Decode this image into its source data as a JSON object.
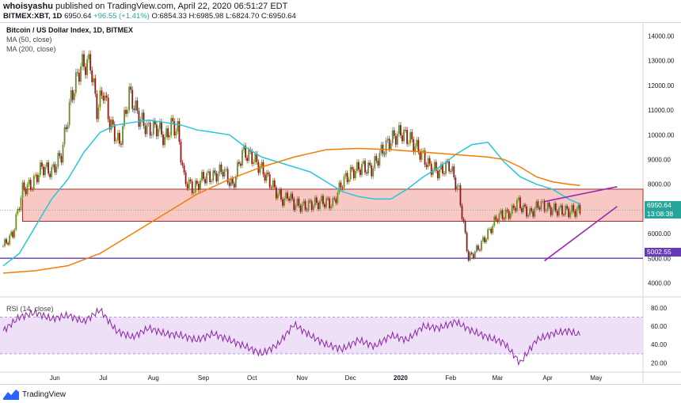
{
  "header": {
    "publisher_user": "whoisyashu",
    "publisher_rest": " published on TradingView.com, April 22, 2020 06:51:27 EDT",
    "symbol": "BITMEX:XBT, 1D",
    "last": "6950.64",
    "change": "+96.55 (+1.41%)",
    "open": "O:6854.33",
    "high": "H:6985.98",
    "low": "L:6824.70",
    "close": "C:6950.64"
  },
  "legend": {
    "title": "Bitcoin / US Dollar Index, 1D, BITMEX",
    "ma50": "MA (50, close)",
    "ma200": "MA (200, close)",
    "rsi": "RSI (14, close)"
  },
  "tags": {
    "last_price": "6950.64",
    "countdown": "13:08:38",
    "support": "5002.55"
  },
  "footer": {
    "brand": "TradingView"
  },
  "colors": {
    "up": "#26a69a",
    "down": "#ef5350",
    "candle_up": "#6b8e23",
    "candle_down": "#8b1a1a",
    "ma50": "#26c6da",
    "ma200": "#f57c00",
    "zone_fill": "#f8c8c4",
    "zone_line": "#a03030",
    "wedge": "#9c27b0",
    "support": "#673ab7",
    "rsi": "#8e24aa",
    "rsi_band": "#ede0f7"
  },
  "chart_data": {
    "type": "candlestick",
    "title": "Bitcoin / US Dollar Index, 1D, BITMEX",
    "price_axis": {
      "ticks": [
        4000,
        5000,
        6000,
        7000,
        8000,
        9000,
        10000,
        11000,
        12000,
        13000,
        14000
      ],
      "labels": [
        "4000.00",
        "5000.00",
        "6000.00",
        "7000.00",
        "8000.00",
        "9000.00",
        "10000.00",
        "11000.00",
        "12000.00",
        "13000.00",
        "14000.00"
      ],
      "range": [
        3600,
        14400
      ]
    },
    "rsi_axis": {
      "ticks": [
        20,
        40,
        60,
        80
      ],
      "labels": [
        "20.00",
        "40.00",
        "60.00",
        "80.00"
      ],
      "range": [
        10,
        92
      ],
      "band": [
        30,
        70
      ]
    },
    "x_axis": {
      "labels": [
        "Jun",
        "Jul",
        "Aug",
        "Sep",
        "Oct",
        "Nov",
        "Dec",
        "2020",
        "Feb",
        "Mar",
        "Apr",
        "May"
      ],
      "label_days": [
        32,
        62,
        93,
        124,
        154,
        185,
        215,
        246,
        277,
        306,
        337,
        367
      ],
      "day0": "2019-05-01",
      "last_day": 357
    },
    "series": [
      {
        "name": "Price",
        "type": "close",
        "days": [
          0,
          6,
          12,
          18,
          24,
          30,
          36,
          42,
          48,
          54,
          58,
          62,
          66,
          72,
          78,
          84,
          90,
          96,
          100,
          104,
          108,
          112,
          118,
          124,
          130,
          136,
          142,
          148,
          154,
          160,
          166,
          170,
          174,
          176,
          180,
          186,
          192,
          198,
          204,
          210,
          216,
          222,
          228,
          234,
          240,
          246,
          252,
          258,
          264,
          270,
          276,
          282,
          288,
          294,
          300,
          306,
          312,
          315,
          318,
          322,
          326,
          332,
          338,
          344,
          350,
          357
        ],
        "values": [
          5500,
          6000,
          7800,
          8000,
          8700,
          8500,
          9200,
          11500,
          12800,
          12900,
          11000,
          11800,
          10500,
          9600,
          11700,
          10700,
          10200,
          10300,
          9800,
          10400,
          10200,
          8200,
          7800,
          8300,
          8300,
          8600,
          7900,
          9300,
          9100,
          8600,
          8000,
          7600,
          7300,
          7600,
          7200,
          7100,
          7200,
          7300,
          7200,
          8100,
          8500,
          8700,
          8600,
          9300,
          9800,
          10100,
          9800,
          9300,
          8700,
          8500,
          8800,
          7700,
          5000,
          5400,
          6000,
          6700,
          6800,
          6900,
          7300,
          7000,
          6800,
          7200,
          7000,
          6950,
          6900,
          6950
        ]
      },
      {
        "name": "MA (50, close)",
        "days": [
          0,
          10,
          20,
          30,
          40,
          50,
          60,
          70,
          80,
          90,
          100,
          110,
          120,
          130,
          140,
          150,
          160,
          170,
          180,
          190,
          200,
          210,
          220,
          230,
          240,
          250,
          260,
          270,
          280,
          290,
          300,
          310,
          320,
          330,
          340,
          350,
          357
        ],
        "values": [
          4700,
          5200,
          6300,
          7400,
          8200,
          9300,
          10100,
          10400,
          10500,
          10600,
          10500,
          10400,
          10200,
          10100,
          10000,
          9500,
          9100,
          8900,
          8700,
          8500,
          8100,
          7700,
          7500,
          7400,
          7400,
          7800,
          8300,
          8700,
          9200,
          9600,
          9700,
          8900,
          8300,
          8000,
          7800,
          7400,
          7200
        ]
      },
      {
        "name": "MA (200, close)",
        "days": [
          0,
          20,
          40,
          60,
          80,
          100,
          120,
          140,
          160,
          180,
          200,
          220,
          240,
          260,
          280,
          300,
          310,
          320,
          330,
          340,
          350,
          357
        ],
        "values": [
          4400,
          4500,
          4700,
          5200,
          6000,
          6800,
          7600,
          8200,
          8700,
          9100,
          9400,
          9450,
          9400,
          9300,
          9200,
          9100,
          9000,
          8700,
          8300,
          8100,
          8000,
          7950
        ]
      }
    ],
    "rsi": {
      "days": [
        0,
        10,
        20,
        30,
        40,
        50,
        60,
        70,
        80,
        90,
        100,
        110,
        120,
        130,
        140,
        150,
        160,
        170,
        180,
        190,
        200,
        210,
        220,
        230,
        240,
        250,
        260,
        270,
        280,
        290,
        300,
        310,
        320,
        330,
        340,
        350,
        357
      ],
      "values": [
        55,
        70,
        75,
        68,
        72,
        65,
        78,
        55,
        48,
        58,
        52,
        50,
        45,
        52,
        45,
        38,
        30,
        40,
        62,
        50,
        40,
        35,
        45,
        38,
        50,
        45,
        60,
        58,
        65,
        55,
        48,
        42,
        20,
        45,
        52,
        55,
        50
      ]
    },
    "annotations": {
      "resistance_zone": [
        6500,
        7800
      ],
      "support_line": 5002.55,
      "rising_wedge": {
        "upper": [
          [
            335,
            7300
          ],
          [
            380,
            7900
          ]
        ],
        "lower": [
          [
            335,
            4900
          ],
          [
            380,
            7100
          ]
        ]
      }
    }
  }
}
